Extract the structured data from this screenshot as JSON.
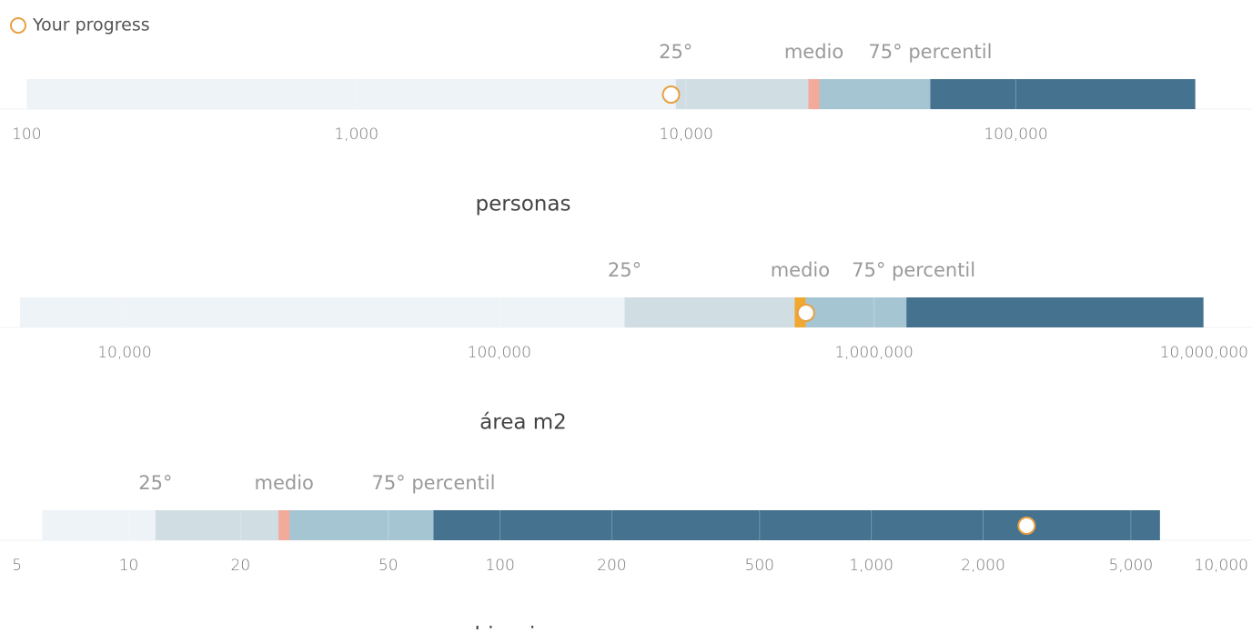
{
  "legend": {
    "label": "Your progress",
    "color": "#e8a040"
  },
  "chart_data": [
    {
      "type": "bullet",
      "log_x": true,
      "xlim": [
        83,
        520000
      ],
      "xticks": [
        100,
        {
          "value": 1000,
          "label": "1,000"
        },
        {
          "value": 10000,
          "label": "10,000"
        },
        {
          "value": 100000,
          "label": "100,000"
        }
      ],
      "min": 100,
      "p25": 9300,
      "median": 24400,
      "p75": 55000,
      "max": 350000,
      "value": 9000,
      "xlabel": "personas",
      "labels": {
        "p25": "25°",
        "median": "medio",
        "p75": "75° percentil"
      },
      "colors": [
        "#eef3f7",
        "#d0dde3",
        "#a6c5d3",
        "#44728f"
      ],
      "median_color": "#f2aa9a"
    },
    {
      "type": "bullet",
      "log_x": true,
      "xlim": [
        4650,
        10200000
      ],
      "xticks": [
        {
          "value": 10000,
          "label": "10,000"
        },
        {
          "value": 100000,
          "label": "100,000"
        },
        {
          "value": 1000000,
          "label": "1,000,000"
        },
        {
          "value": 10000000,
          "label": "10,000,000"
        }
      ],
      "min": 5260,
      "p25": 216000,
      "median": 635000,
      "p75": 1220000,
      "max": 7570000,
      "value": 658000,
      "xlabel": "área m2",
      "labels": {
        "p25": "25°",
        "median": "medio",
        "p75": "75° percentil"
      },
      "colors": [
        "#eef3f7",
        "#d0dde3",
        "#a6c5d3",
        "#44728f"
      ],
      "median_color": "#f0a830"
    },
    {
      "type": "bullet",
      "log_x": true,
      "xlim": [
        4.5,
        10600
      ],
      "xticks": [
        5,
        10,
        20,
        50,
        100,
        200,
        500,
        {
          "value": 1000,
          "label": "1,000"
        },
        {
          "value": 2000,
          "label": "2,000"
        },
        {
          "value": 5000,
          "label": "5,000"
        },
        {
          "value": 10000,
          "label": "10,000"
        }
      ],
      "min": 5.85,
      "p25": 11.8,
      "median": 26.2,
      "p75": 66.2,
      "max": 5990,
      "value": 2620,
      "xlabel": "ubicaciones",
      "labels": {
        "p25": "25°",
        "median": "medio",
        "p75": "75° percentil"
      },
      "colors": [
        "#eef3f7",
        "#d0dde3",
        "#a6c5d3",
        "#44728f"
      ],
      "median_color": "#f2aa9a"
    }
  ]
}
